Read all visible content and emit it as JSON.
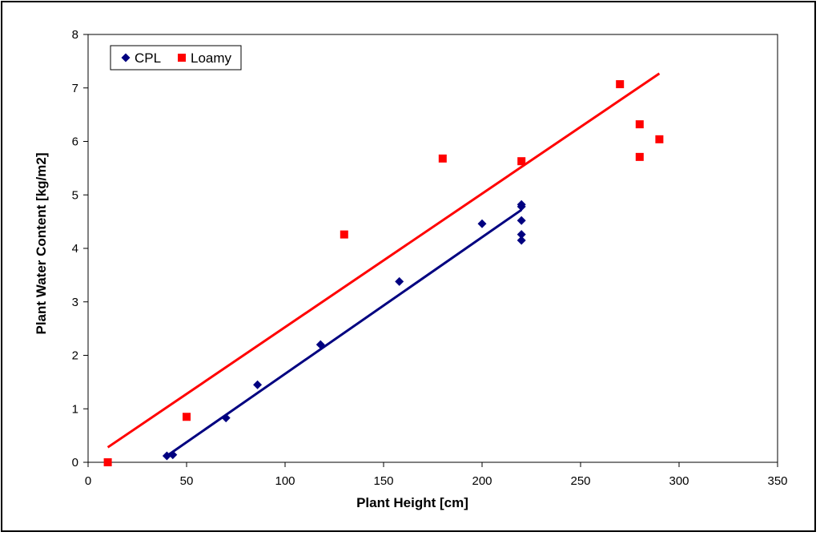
{
  "chart_data": {
    "type": "scatter",
    "xlabel": "Plant Height [cm]",
    "ylabel": "Plant Water Content [kg/m2]",
    "xlim": [
      0,
      350
    ],
    "ylim": [
      0,
      8
    ],
    "xticks": [
      "0",
      "50",
      "100",
      "150",
      "200",
      "250",
      "300",
      "350"
    ],
    "yticks": [
      "0",
      "1",
      "2",
      "3",
      "4",
      "5",
      "6",
      "7",
      "8"
    ],
    "grid": false,
    "legend_position": "top-left",
    "series": [
      {
        "name": "CPL",
        "marker": "diamond",
        "color": "#000080",
        "points": [
          [
            40,
            0.12
          ],
          [
            43,
            0.14
          ],
          [
            70,
            0.83
          ],
          [
            86,
            1.45
          ],
          [
            118,
            2.2
          ],
          [
            158,
            3.38
          ],
          [
            200,
            4.46
          ],
          [
            220,
            4.82
          ],
          [
            220,
            4.78
          ],
          [
            220,
            4.52
          ],
          [
            220,
            4.26
          ],
          [
            220,
            4.15
          ]
        ],
        "trendline": [
          [
            40,
            0.12
          ],
          [
            220,
            4.72
          ]
        ]
      },
      {
        "name": "Loamy",
        "marker": "square",
        "color": "#ff0000",
        "points": [
          [
            10,
            0.0
          ],
          [
            50,
            0.85
          ],
          [
            130,
            4.26
          ],
          [
            180,
            5.68
          ],
          [
            220,
            5.63
          ],
          [
            270,
            7.07
          ],
          [
            280,
            6.32
          ],
          [
            280,
            5.71
          ],
          [
            290,
            6.04
          ]
        ],
        "trendline": [
          [
            10,
            0.28
          ],
          [
            290,
            7.27
          ]
        ]
      }
    ]
  }
}
